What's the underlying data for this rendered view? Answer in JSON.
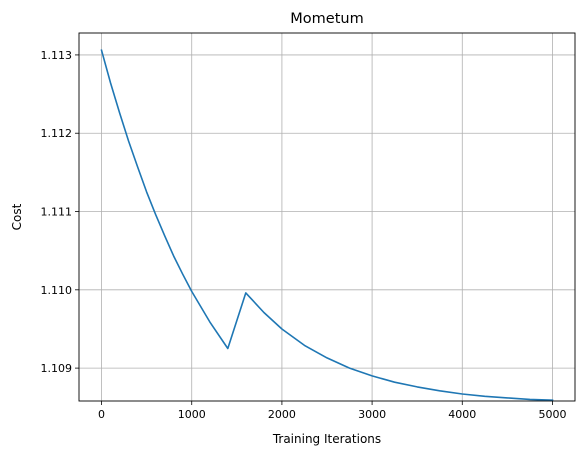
{
  "chart_data": {
    "type": "line",
    "title": "Mometum",
    "xlabel": "Training Iterations",
    "ylabel": "Cost",
    "xlim": [
      -250,
      5250
    ],
    "ylim": [
      1.10858,
      1.11328
    ],
    "xticks": [
      0,
      1000,
      2000,
      3000,
      4000,
      5000
    ],
    "xtick_labels": [
      "0",
      "1000",
      "2000",
      "3000",
      "4000",
      "5000"
    ],
    "yticks": [
      1.109,
      1.11,
      1.111,
      1.112,
      1.113
    ],
    "ytick_labels": [
      "1.109",
      "1.110",
      "1.111",
      "1.112",
      "1.113"
    ],
    "grid": true,
    "series": [
      {
        "color": "#1f77b4",
        "x": [
          0,
          100,
          200,
          300,
          400,
          500,
          600,
          700,
          800,
          900,
          1000,
          1200,
          1400,
          1600,
          1800,
          2000,
          2250,
          2500,
          2750,
          3000,
          3250,
          3500,
          3750,
          4000,
          4250,
          4500,
          4750,
          5000
        ],
        "y": [
          1.11306,
          1.11264,
          1.11226,
          1.1119,
          1.11157,
          1.11125,
          1.11096,
          1.11069,
          1.11043,
          1.1102,
          1.10998,
          1.10959,
          1.10925,
          1.10996,
          1.10971,
          1.1095,
          1.10929,
          1.10913,
          1.109,
          1.1089,
          1.10882,
          1.10876,
          1.10871,
          1.10867,
          1.10864,
          1.10862,
          1.1086,
          1.10859
        ]
      }
    ]
  }
}
